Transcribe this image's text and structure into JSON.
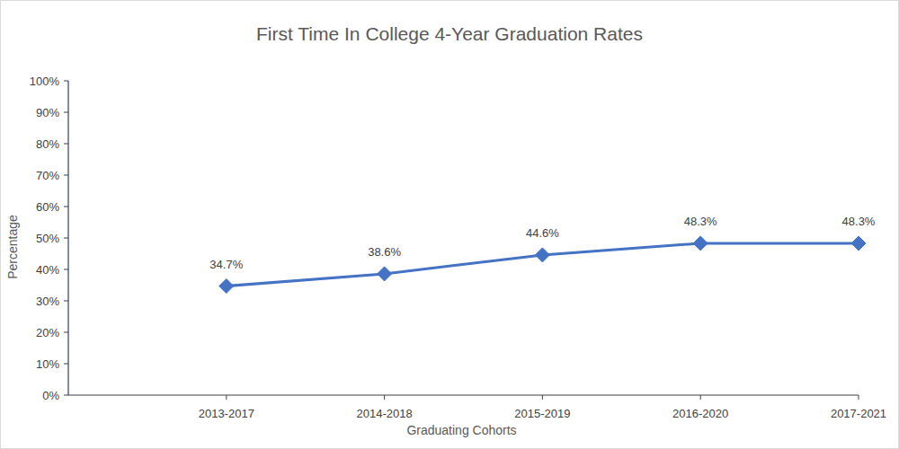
{
  "chart_data": {
    "type": "line",
    "title": "First Time In College 4-Year Graduation Rates",
    "x_label": "Graduating Cohorts",
    "y_label": "Percentage",
    "categories": [
      "2013-2017",
      "2014-2018",
      "2015-2019",
      "2016-2020",
      "2017-2021"
    ],
    "values": [
      34.7,
      38.6,
      44.6,
      48.3,
      48.3
    ],
    "value_labels": [
      "34.7%",
      "38.6%",
      "44.6%",
      "48.3%",
      "48.3%"
    ],
    "color": "#4472c4",
    "marker": "diamond",
    "data_labels": true,
    "grid": false,
    "ylim": [
      0,
      100
    ],
    "yticks": [
      {
        "value": 0,
        "label": "0%"
      },
      {
        "value": 10,
        "label": "10%"
      },
      {
        "value": 20,
        "label": "20%"
      },
      {
        "value": 30,
        "label": "30%"
      },
      {
        "value": 40,
        "label": "40%"
      },
      {
        "value": 50,
        "label": "50%"
      },
      {
        "value": 60,
        "label": "60%"
      },
      {
        "value": 70,
        "label": "70%"
      },
      {
        "value": 80,
        "label": "80%"
      },
      {
        "value": 90,
        "label": "90%"
      },
      {
        "value": 100,
        "label": "100%"
      }
    ]
  }
}
